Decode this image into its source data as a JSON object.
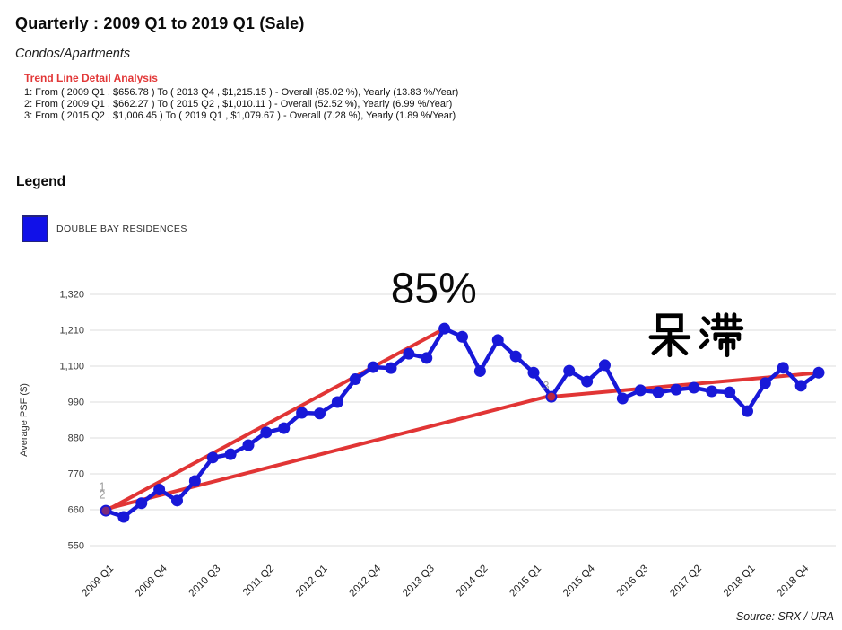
{
  "header": {
    "title": "Quarterly : 2009 Q1 to 2019 Q1 (Sale)",
    "subtitle": "Condos/Apartments"
  },
  "trend_analysis": {
    "heading": "Trend Line Detail Analysis",
    "lines": [
      "1: From ( 2009 Q1 , $656.78 ) To ( 2013 Q4 , $1,215.15 ) - Overall (85.02 %), Yearly (13.83 %/Year)",
      "2: From ( 2009 Q1 , $662.27 ) To ( 2015 Q2 , $1,010.11 ) - Overall (52.52 %), Yearly (6.99 %/Year)",
      "3: From ( 2015 Q2 , $1,006.45 ) To ( 2019 Q1 , $1,079.67 ) - Overall (7.28 %), Yearly (1.89 %/Year)"
    ]
  },
  "legend": {
    "heading": "Legend",
    "items": [
      {
        "label": "DOUBLE BAY RESIDENCES",
        "color": "#1111e8"
      }
    ]
  },
  "footer": {
    "source": "Source: SRX / URA"
  },
  "colors": {
    "series_blue": "#1818d8",
    "trend_red": "#e13535",
    "grid": "#e3e3e3",
    "tick_text": "#3a3a3a",
    "trend_label_gray": "#9a9a9a"
  },
  "chart_data": {
    "type": "line",
    "title": "",
    "xlabel": "",
    "ylabel": "Average PSF ($)",
    "ylim": [
      550,
      1320
    ],
    "grid": true,
    "legend_position": "outside-top-left",
    "ytick_values": [
      550,
      660,
      770,
      880,
      990,
      1100,
      1210,
      1320
    ],
    "ytick_labels": [
      "550",
      "660",
      "770",
      "880",
      "990",
      "1,100",
      "1,210",
      "1,320"
    ],
    "x_categories": [
      "2009 Q1",
      "2009 Q2",
      "2009 Q3",
      "2009 Q4",
      "2010 Q1",
      "2010 Q2",
      "2010 Q3",
      "2010 Q4",
      "2011 Q1",
      "2011 Q2",
      "2011 Q3",
      "2011 Q4",
      "2012 Q1",
      "2012 Q2",
      "2012 Q3",
      "2012 Q4",
      "2013 Q1",
      "2013 Q2",
      "2013 Q3",
      "2013 Q4",
      "2014 Q1",
      "2014 Q2",
      "2014 Q3",
      "2014 Q4",
      "2015 Q1",
      "2015 Q2",
      "2015 Q3",
      "2015 Q4",
      "2016 Q1",
      "2016 Q2",
      "2016 Q3",
      "2016 Q4",
      "2017 Q1",
      "2017 Q2",
      "2017 Q3",
      "2017 Q4",
      "2018 Q1",
      "2018 Q2",
      "2018 Q3",
      "2018 Q4",
      "2019 Q1"
    ],
    "x_tick_labels": [
      "2009 Q1",
      "2009 Q4",
      "2010 Q3",
      "2011 Q2",
      "2012 Q1",
      "2012 Q4",
      "2013 Q3",
      "2014 Q2",
      "2015 Q1",
      "2015 Q4",
      "2016 Q3",
      "2017 Q2",
      "2018 Q1",
      "2018 Q4"
    ],
    "series": [
      {
        "name": "DOUBLE BAY RESIDENCES",
        "color": "#1818d8",
        "values": [
          657,
          638,
          680,
          722,
          688,
          748,
          820,
          830,
          858,
          897,
          910,
          957,
          955,
          990,
          1060,
          1097,
          1094,
          1138,
          1125,
          1215,
          1190,
          1085,
          1180,
          1130,
          1080,
          1006,
          1086,
          1053,
          1103,
          1001,
          1026,
          1020,
          1028,
          1034,
          1023,
          1020,
          962,
          1048,
          1095,
          1040,
          1080
        ]
      }
    ],
    "trend_lines": [
      {
        "id": "1",
        "from_x": "2009 Q1",
        "from_value": 656.78,
        "to_x": "2013 Q4",
        "to_value": 1215.15,
        "color": "#e13535"
      },
      {
        "id": "2",
        "from_x": "2009 Q1",
        "from_value": 662.27,
        "to_x": "2015 Q2",
        "to_value": 1010.11,
        "color": "#e13535"
      },
      {
        "id": "3",
        "from_x": "2015 Q2",
        "from_value": 1006.45,
        "to_x": "2019 Q1",
        "to_value": 1079.67,
        "color": "#e13535"
      }
    ],
    "trend_point_labels": [
      {
        "text": "1",
        "x": "2009 Q1",
        "value": 730,
        "dx": -4
      },
      {
        "text": "2",
        "x": "2009 Q1",
        "value": 705,
        "dx": -4
      },
      {
        "text": "3",
        "x": "2015 Q1",
        "value": 1040,
        "dx": 14
      }
    ],
    "annotations": [
      {
        "text": "85%",
        "x": "2013 Q3",
        "value": 1342,
        "font_px": 48,
        "dx": 8,
        "glyph": "plain"
      },
      {
        "text": "呆滞",
        "x": "2017 Q2",
        "value": 1197,
        "font_px": 50,
        "dx": 2,
        "glyph": "cjk-dai-zhi"
      }
    ]
  }
}
